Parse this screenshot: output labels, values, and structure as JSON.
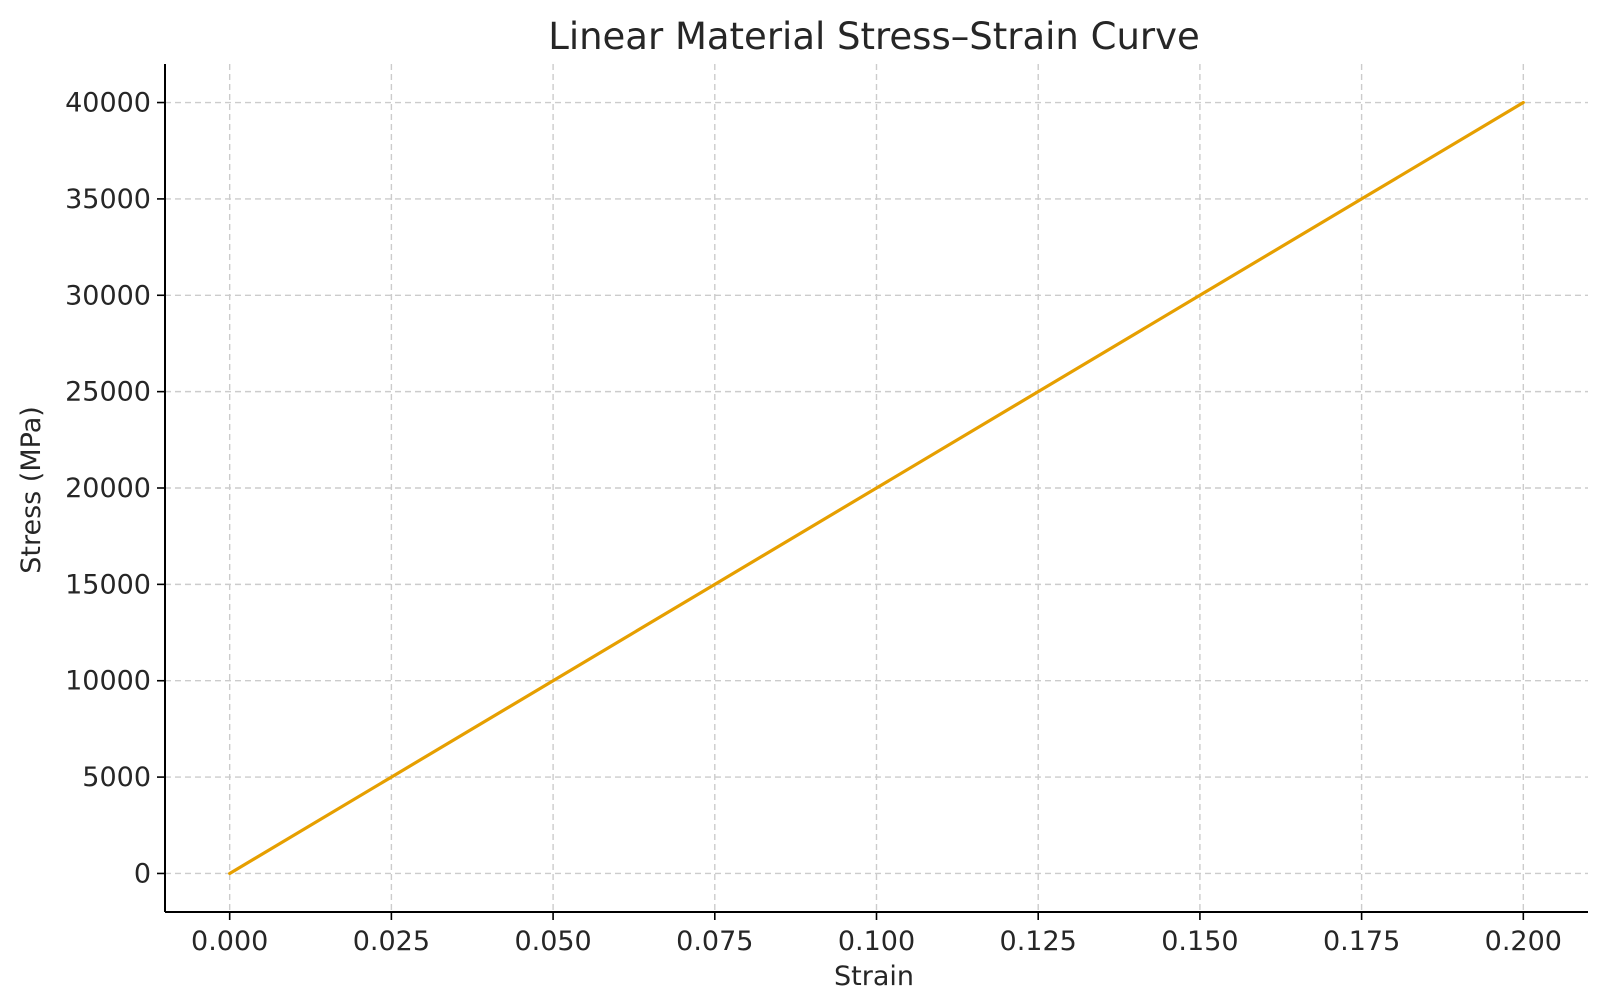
{
  "chart_data": {
    "type": "line",
    "title": "Linear Material Stress–Strain Curve",
    "xlabel": "Strain",
    "ylabel": "Stress (MPa)",
    "xlim": [
      -0.01,
      0.21
    ],
    "ylim": [
      -2000,
      42000
    ],
    "xticks": [
      0.0,
      0.025,
      0.05,
      0.075,
      0.1,
      0.125,
      0.15,
      0.175,
      0.2
    ],
    "xtick_labels": [
      "0.000",
      "0.025",
      "0.050",
      "0.075",
      "0.100",
      "0.125",
      "0.150",
      "0.175",
      "0.200"
    ],
    "yticks": [
      0,
      5000,
      10000,
      15000,
      20000,
      25000,
      30000,
      35000,
      40000
    ],
    "ytick_labels": [
      "0",
      "5000",
      "10000",
      "15000",
      "20000",
      "25000",
      "30000",
      "35000",
      "40000"
    ],
    "grid": true,
    "legend": "none",
    "series": [
      {
        "color": "#e69f00",
        "x": [
          0.0,
          0.025,
          0.05,
          0.075,
          0.1,
          0.125,
          0.15,
          0.175,
          0.2
        ],
        "y": [
          0,
          5000,
          10000,
          15000,
          20000,
          25000,
          30000,
          35000,
          40000
        ]
      }
    ]
  }
}
